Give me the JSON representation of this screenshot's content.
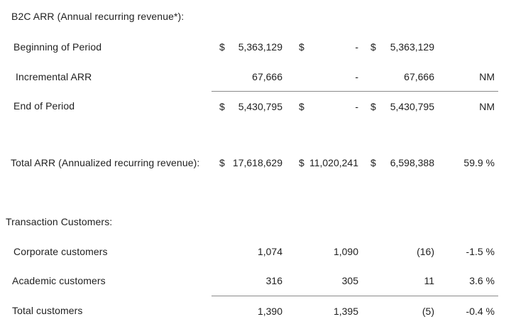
{
  "document": {
    "background": "#ffffff",
    "text_color": "#1f1f1f",
    "rule_color": "#8a8a8a"
  },
  "table": {
    "columns": [
      "current_period",
      "prior_period",
      "change",
      "pct_change"
    ],
    "rows": [
      {
        "label": "B2C ARR (Annual recurring revenue*):",
        "c1s": "",
        "c1v": "",
        "c2s": "",
        "c2v": "",
        "c3s": "",
        "c3v": "",
        "c4v": ""
      },
      {
        "label": "Beginning of Period",
        "c1s": "$",
        "c1v": "5,363,129",
        "c2s": "$",
        "c2v": "-",
        "c3s": "$",
        "c3v": "5,363,129",
        "c4v": ""
      },
      {
        "label": "Incremental ARR",
        "c1s": "",
        "c1v": "67,666",
        "c2s": "",
        "c2v": "-",
        "c3s": "",
        "c3v": "67,666",
        "c4v": "NM"
      },
      {
        "label": "End of Period",
        "c1s": "$",
        "c1v": "5,430,795",
        "c2s": "$",
        "c2v": "-",
        "c3s": "$",
        "c3v": "5,430,795",
        "c4v": "NM"
      },
      {
        "label": "Total ARR (Annualized recurring revenue):",
        "c1s": "$",
        "c1v": "17,618,629",
        "c2s": "$",
        "c2v": "11,020,241",
        "c3s": "$",
        "c3v": "6,598,388",
        "c4v": "59.9 %"
      },
      {
        "label": "Transaction Customers:",
        "c1s": "",
        "c1v": "",
        "c2s": "",
        "c2v": "",
        "c3s": "",
        "c3v": "",
        "c4v": ""
      },
      {
        "label": "Corporate customers",
        "c1s": "",
        "c1v": "1,074",
        "c2s": "",
        "c2v": "1,090",
        "c3s": "",
        "c3v": "(16)",
        "c4v": "-1.5 %"
      },
      {
        "label": "Academic customers",
        "c1s": "",
        "c1v": "316",
        "c2s": "",
        "c2v": "305",
        "c3s": "",
        "c3v": "11",
        "c4v": "3.6 %"
      },
      {
        "label": "Total customers",
        "c1s": "",
        "c1v": "1,390",
        "c2s": "",
        "c2v": "1,395",
        "c3s": "",
        "c3v": "(5)",
        "c4v": "-0.4 %"
      }
    ]
  }
}
